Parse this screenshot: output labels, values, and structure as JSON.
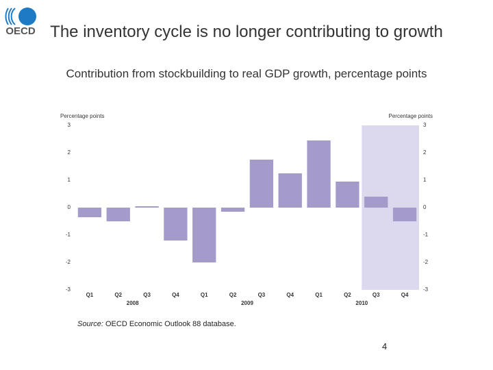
{
  "slide": {
    "logo_text": "OECD",
    "source_label": "Source:",
    "source": "OECD Economic Outlook 88 database.",
    "page_number": 4
  },
  "chart_data": {
    "type": "bar",
    "title": "The inventory cycle is no longer contributing to growth",
    "subtitle": "Contribution from stockbuilding to real GDP growth, percentage points",
    "ylabel": "Percentage points",
    "y2label": "Percentage points",
    "categories": [
      "Q1",
      "Q2",
      "Q3",
      "Q4",
      "Q1",
      "Q2",
      "Q3",
      "Q4",
      "Q1",
      "Q2",
      "Q3",
      "Q4"
    ],
    "years": [
      "2008",
      "2009",
      "2010"
    ],
    "values": [
      -0.35,
      -0.5,
      0.05,
      -1.2,
      -2.0,
      -0.15,
      1.75,
      1.25,
      2.45,
      0.95,
      0.4,
      -0.5
    ],
    "color": "#a59bcb",
    "ylim": [
      -3,
      3
    ],
    "yticks": [
      -3,
      -2,
      -1,
      0,
      1,
      2,
      3
    ],
    "y2lim": [
      -3,
      3
    ],
    "y2ticks": [
      -3,
      -2,
      -1,
      0,
      1,
      2,
      3
    ],
    "shaded": {
      "from": 10,
      "to": 11,
      "color": "#dcd8ee"
    },
    "grid": false
  }
}
